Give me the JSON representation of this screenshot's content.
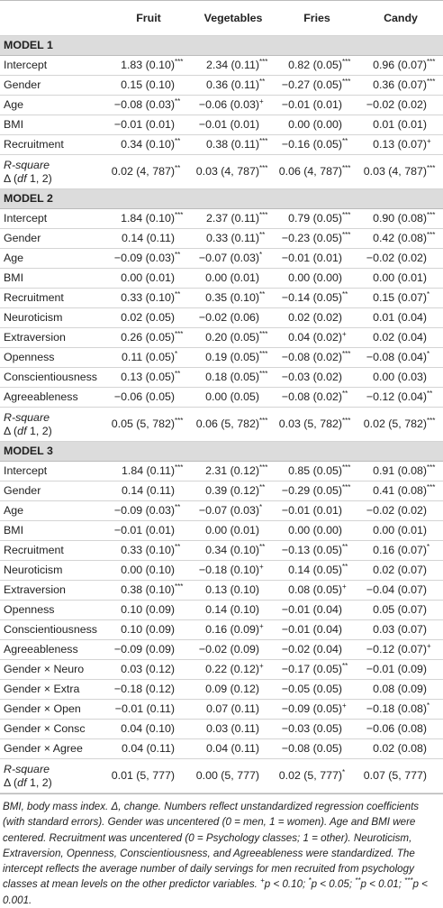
{
  "columns": [
    "Fruit",
    "Vegetables",
    "Fries",
    "Candy"
  ],
  "sections": [
    {
      "title": "MODEL 1",
      "rows": [
        {
          "label": "Intercept",
          "cells": [
            [
              "1.83 (0.10)",
              "***"
            ],
            [
              "2.34 (0.11)",
              "***"
            ],
            [
              "0.82 (0.05)",
              "***"
            ],
            [
              "0.96 (0.07)",
              "***"
            ]
          ]
        },
        {
          "label": "Gender",
          "cells": [
            [
              "0.15 (0.10)"
            ],
            [
              "0.36 (0.11)",
              "**"
            ],
            [
              "−0.27 (0.05)",
              "***"
            ],
            [
              "0.36 (0.07)",
              "***"
            ]
          ]
        },
        {
          "label": "Age",
          "cells": [
            [
              "−0.08 (0.03)",
              "**"
            ],
            [
              "−0.06 (0.03)",
              "+"
            ],
            [
              "−0.01 (0.01)"
            ],
            [
              "−0.02 (0.02)"
            ]
          ]
        },
        {
          "label": "BMI",
          "cells": [
            [
              "−0.01 (0.01)"
            ],
            [
              "−0.01 (0.01)"
            ],
            [
              "0.00 (0.00)"
            ],
            [
              "0.01 (0.01)"
            ]
          ]
        },
        {
          "label": "Recruitment",
          "cells": [
            [
              "0.34 (0.10)",
              "**"
            ],
            [
              "0.38 (0.11)",
              "***"
            ],
            [
              "−0.16 (0.05)",
              "**"
            ],
            [
              "0.13 (0.07)",
              "+"
            ]
          ]
        },
        {
          "label": "R-square",
          "label2": [
            "Δ (",
            "df",
            " 1, 2)"
          ],
          "cells": [
            [
              "0.02 (4, 787)",
              "**"
            ],
            [
              "0.03 (4, 787)",
              "***"
            ],
            [
              "0.06 (4, 787)",
              "***"
            ],
            [
              "0.03 (4, 787)",
              "***"
            ]
          ]
        }
      ]
    },
    {
      "title": "MODEL 2",
      "rows": [
        {
          "label": "Intercept",
          "cells": [
            [
              "1.84 (0.10)",
              "***"
            ],
            [
              "2.37 (0.11)",
              "***"
            ],
            [
              "0.79 (0.05)",
              "***"
            ],
            [
              "0.90 (0.08)",
              "***"
            ]
          ]
        },
        {
          "label": "Gender",
          "cells": [
            [
              "0.14 (0.11)"
            ],
            [
              "0.33 (0.11)",
              "**"
            ],
            [
              "−0.23 (0.05)",
              "***"
            ],
            [
              "0.42 (0.08)",
              "***"
            ]
          ]
        },
        {
          "label": "Age",
          "cells": [
            [
              "−0.09 (0.03)",
              "**"
            ],
            [
              "−0.07 (0.03)",
              "*"
            ],
            [
              "−0.01 (0.01)"
            ],
            [
              "−0.02 (0.02)"
            ]
          ]
        },
        {
          "label": "BMI",
          "cells": [
            [
              "0.00 (0.01)"
            ],
            [
              "0.00 (0.01)"
            ],
            [
              "0.00 (0.00)"
            ],
            [
              "0.00 (0.01)"
            ]
          ]
        },
        {
          "label": "Recruitment",
          "cells": [
            [
              "0.33 (0.10)",
              "**"
            ],
            [
              "0.35 (0.10)",
              "**"
            ],
            [
              "−0.14 (0.05)",
              "**"
            ],
            [
              "0.15 (0.07)",
              "*"
            ]
          ]
        },
        {
          "label": "Neuroticism",
          "cells": [
            [
              "0.02 (0.05)"
            ],
            [
              "−0.02 (0.06)"
            ],
            [
              "0.02 (0.02)"
            ],
            [
              "0.01 (0.04)"
            ]
          ]
        },
        {
          "label": "Extraversion",
          "cells": [
            [
              "0.26 (0.05)",
              "***"
            ],
            [
              "0.20 (0.05)",
              "***"
            ],
            [
              "0.04 (0.02)",
              "+"
            ],
            [
              "0.02 (0.04)"
            ]
          ]
        },
        {
          "label": "Openness",
          "cells": [
            [
              "0.11 (0.05)",
              "*"
            ],
            [
              "0.19 (0.05)",
              "***"
            ],
            [
              "−0.08 (0.02)",
              "***"
            ],
            [
              "−0.08 (0.04)",
              "*"
            ]
          ]
        },
        {
          "label": "Conscientiousness",
          "cells": [
            [
              "0.13 (0.05)",
              "**"
            ],
            [
              "0.18 (0.05)",
              "***"
            ],
            [
              "−0.03 (0.02)"
            ],
            [
              "0.00 (0.03)"
            ]
          ]
        },
        {
          "label": "Agreeableness",
          "cells": [
            [
              "−0.06 (0.05)"
            ],
            [
              "0.00 (0.05)"
            ],
            [
              "−0.08 (0.02)",
              "**"
            ],
            [
              "−0.12 (0.04)",
              "**"
            ]
          ]
        },
        {
          "label": "R-square",
          "label2": [
            "Δ (",
            "df",
            " 1, 2)"
          ],
          "cells": [
            [
              "0.05 (5, 782)",
              "***"
            ],
            [
              "0.06 (5, 782)",
              "***"
            ],
            [
              "0.03 (5, 782)",
              "***"
            ],
            [
              "0.02 (5, 782)",
              "***"
            ]
          ]
        }
      ]
    },
    {
      "title": "MODEL 3",
      "rows": [
        {
          "label": "Intercept",
          "cells": [
            [
              "1.84 (0.11)",
              "***"
            ],
            [
              "2.31 (0.12)",
              "***"
            ],
            [
              "0.85 (0.05)",
              "***"
            ],
            [
              "0.91 (0.08)",
              "***"
            ]
          ]
        },
        {
          "label": "Gender",
          "cells": [
            [
              "0.14 (0.11)"
            ],
            [
              "0.39 (0.12)",
              "**"
            ],
            [
              "−0.29 (0.05)",
              "***"
            ],
            [
              "0.41 (0.08)",
              "***"
            ]
          ]
        },
        {
          "label": "Age",
          "cells": [
            [
              "−0.09 (0.03)",
              "**"
            ],
            [
              "−0.07 (0.03)",
              "*"
            ],
            [
              "−0.01 (0.01)"
            ],
            [
              "−0.02 (0.02)"
            ]
          ]
        },
        {
          "label": "BMI",
          "cells": [
            [
              "−0.01 (0.01)"
            ],
            [
              "0.00 (0.01)"
            ],
            [
              "0.00 (0.00)"
            ],
            [
              "0.00 (0.01)"
            ]
          ]
        },
        {
          "label": "Recruitment",
          "cells": [
            [
              "0.33 (0.10)",
              "**"
            ],
            [
              "0.34 (0.10)",
              "**"
            ],
            [
              "−0.13 (0.05)",
              "**"
            ],
            [
              "0.16 (0.07)",
              "*"
            ]
          ]
        },
        {
          "label": "Neuroticism",
          "cells": [
            [
              "0.00 (0.10)"
            ],
            [
              "−0.18 (0.10)",
              "+"
            ],
            [
              "0.14 (0.05)",
              "**"
            ],
            [
              "0.02 (0.07)"
            ]
          ]
        },
        {
          "label": "Extraversion",
          "cells": [
            [
              "0.38 (0.10)",
              "***"
            ],
            [
              "0.13 (0.10)"
            ],
            [
              "0.08 (0.05)",
              "+"
            ],
            [
              "−0.04 (0.07)"
            ]
          ]
        },
        {
          "label": "Openness",
          "cells": [
            [
              "0.10 (0.09)"
            ],
            [
              "0.14 (0.10)"
            ],
            [
              "−0.01 (0.04)"
            ],
            [
              "0.05 (0.07)"
            ]
          ]
        },
        {
          "label": "Conscientiousness",
          "cells": [
            [
              "0.10 (0.09)"
            ],
            [
              "0.16 (0.09)",
              "+"
            ],
            [
              "−0.01 (0.04)"
            ],
            [
              "0.03 (0.07)"
            ]
          ]
        },
        {
          "label": "Agreeableness",
          "cells": [
            [
              "−0.09 (0.09)"
            ],
            [
              "−0.02 (0.09)"
            ],
            [
              "−0.02 (0.04)"
            ],
            [
              "−0.12 (0.07)",
              "+"
            ]
          ]
        },
        {
          "label": "Gender × Neuro",
          "cells": [
            [
              "0.03 (0.12)"
            ],
            [
              "0.22 (0.12)",
              "+"
            ],
            [
              "−0.17 (0.05)",
              "**"
            ],
            [
              "−0.01 (0.09)"
            ]
          ]
        },
        {
          "label": "Gender × Extra",
          "cells": [
            [
              "−0.18 (0.12)"
            ],
            [
              "0.09 (0.12)"
            ],
            [
              "−0.05 (0.05)"
            ],
            [
              "0.08 (0.09)"
            ]
          ]
        },
        {
          "label": "Gender × Open",
          "cells": [
            [
              "−0.01 (0.11)"
            ],
            [
              "0.07 (0.11)"
            ],
            [
              "−0.09 (0.05)",
              "+"
            ],
            [
              "−0.18 (0.08)",
              "*"
            ]
          ]
        },
        {
          "label": "Gender × Consc",
          "cells": [
            [
              "0.04 (0.10)"
            ],
            [
              "0.03 (0.11)"
            ],
            [
              "−0.03 (0.05)"
            ],
            [
              "−0.06 (0.08)"
            ]
          ]
        },
        {
          "label": "Gender × Agree",
          "cells": [
            [
              "0.04 (0.11)"
            ],
            [
              "0.04 (0.11)"
            ],
            [
              "−0.08 (0.05)"
            ],
            [
              "0.02 (0.08)"
            ]
          ]
        },
        {
          "label": "R-square",
          "label2": [
            "Δ (",
            "df",
            " 1, 2)"
          ],
          "cells": [
            [
              "0.01 (5, 777)"
            ],
            [
              "0.00 (5, 777)"
            ],
            [
              "0.02 (5, 777)",
              "*"
            ],
            [
              "0.07 (5, 777)"
            ]
          ]
        }
      ]
    }
  ],
  "note": [
    "BMI, body mass index. Δ, change. Numbers reflect unstandardized regression coefficients (with standard errors). Gender was uncentered (0 = men, 1 = women). Age and BMI were centered. Recruitment was uncentered (0 = Psychology classes; 1 = other). Neuroticism, Extraversion, Openness, Conscientiousness, and Agreeableness were standardized. The intercept reflects the average number of daily servings for men recruited from psychology classes at mean levels on the other predictor variables. ",
    "+",
    "p < 0.10; ",
    "*",
    "p < 0.05; ",
    "**",
    "p < 0.01; ",
    "***",
    "p < 0.001."
  ]
}
